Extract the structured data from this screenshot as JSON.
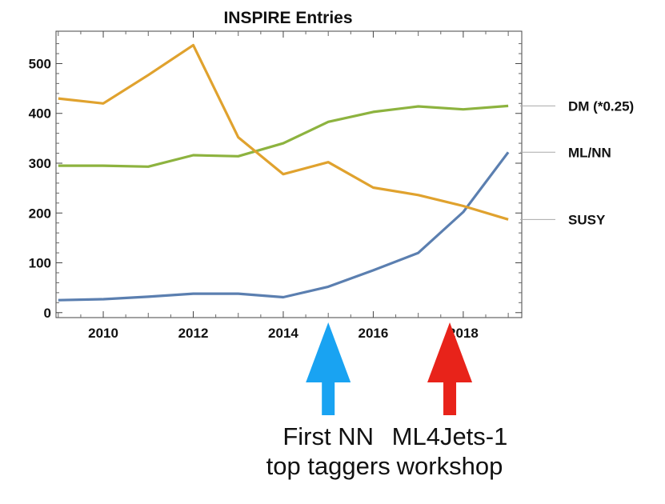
{
  "chart_data": {
    "type": "line",
    "title": "INSPIRE Entries",
    "xlabel": "",
    "ylabel": "",
    "xlim": [
      2008.95,
      2019.3
    ],
    "ylim": [
      -10,
      565
    ],
    "x_ticks": [
      2010,
      2012,
      2014,
      2016,
      2018
    ],
    "y_ticks": [
      0,
      100,
      200,
      300,
      400,
      500
    ],
    "grid": false,
    "legend": "right-side labels",
    "x": [
      2009,
      2010,
      2011,
      2012,
      2013,
      2014,
      2015,
      2016,
      2017,
      2018,
      2019
    ],
    "series": [
      {
        "name": "DM (*0.25)",
        "color": "#8db33f",
        "values": [
          295,
          295,
          293,
          316,
          314,
          340,
          383,
          403,
          414,
          408,
          415
        ]
      },
      {
        "name": "ML/NN",
        "color": "#5b7fb0",
        "values": [
          25,
          27,
          32,
          38,
          38,
          31,
          52,
          85,
          120,
          202,
          322
        ]
      },
      {
        "name": "SUSY",
        "color": "#e0a22e",
        "values": [
          430,
          420,
          477,
          537,
          352,
          278,
          302,
          251,
          236,
          214,
          187
        ]
      }
    ],
    "annotations": [
      {
        "text": "First NN\ntop taggers",
        "x": 2015,
        "arrow_color": "#19a3f2"
      },
      {
        "text": "ML4Jets-1\nworkshop",
        "x": 2017.7,
        "arrow_color": "#e8231a"
      }
    ]
  }
}
